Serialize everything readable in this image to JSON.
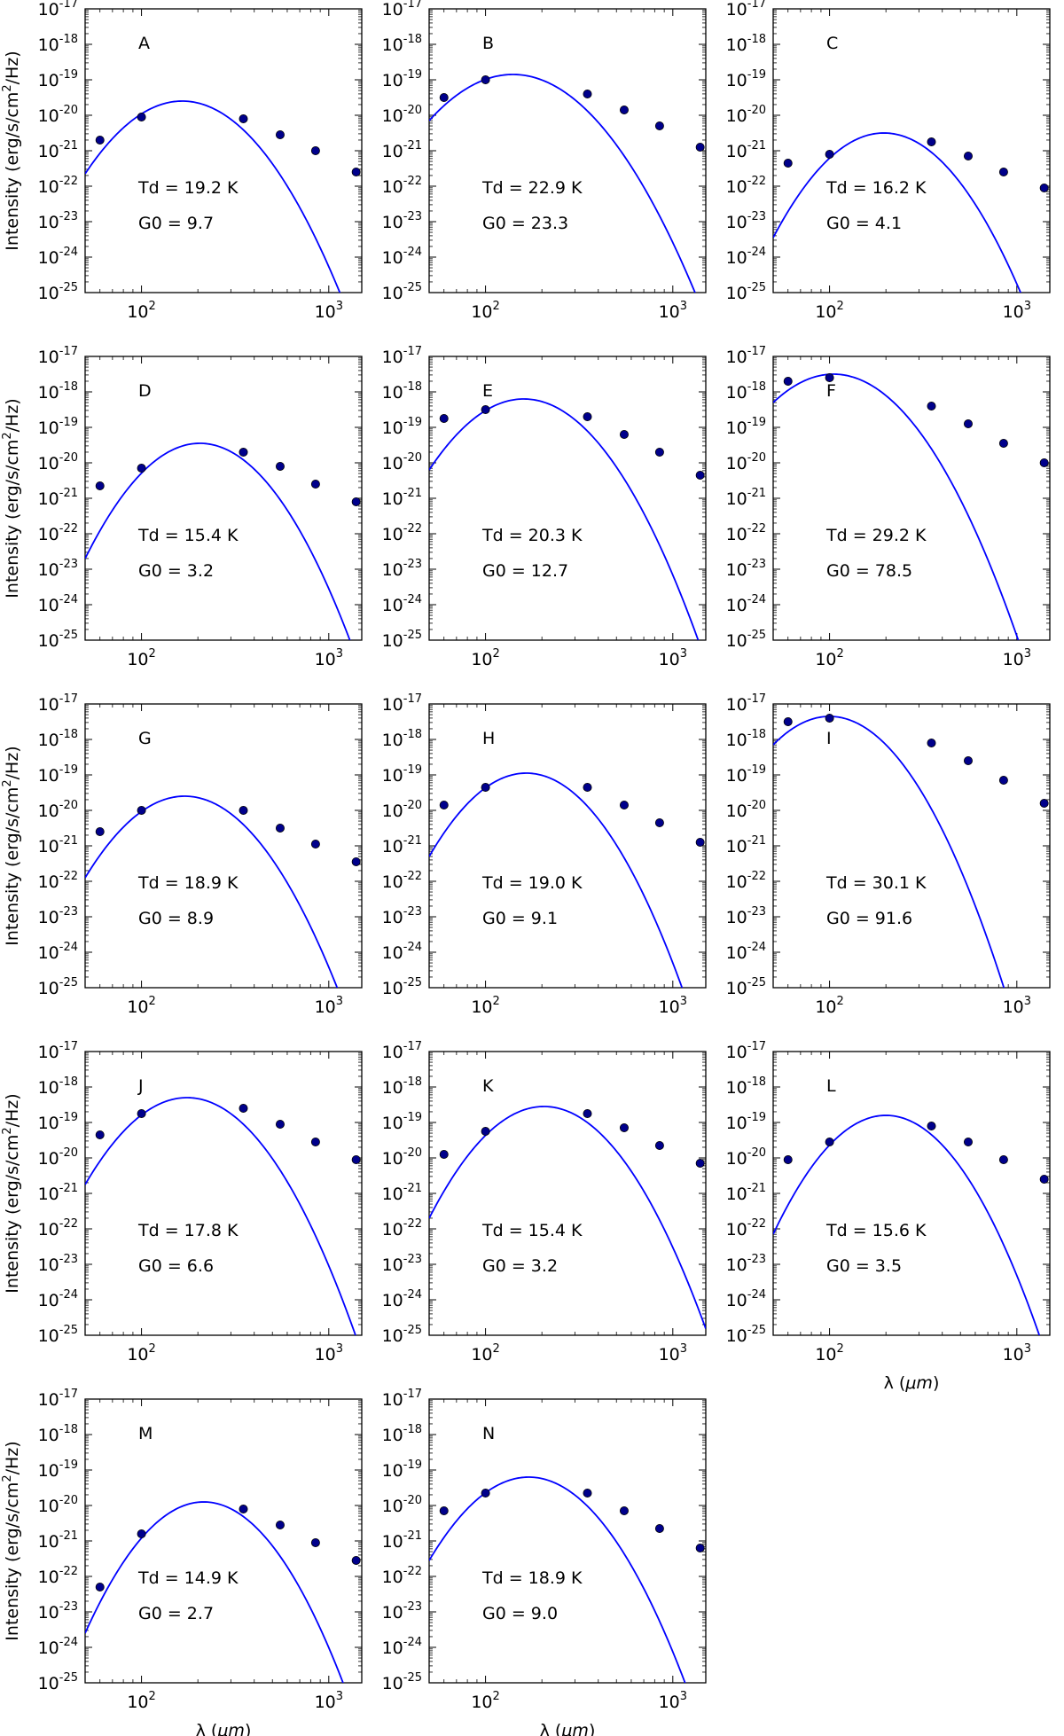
{
  "figure": {
    "common": {
      "type": "scatter+line",
      "xlabel": "λ (μm)",
      "xlabel_prefix": "λ (",
      "xlabel_unit": "μm",
      "xlabel_suffix": ")",
      "ylabel": "Intensity (erg/s/cm²/Hz)",
      "ylabel_prefix": "Intensity (erg/s/cm",
      "ylabel_sup": "2",
      "ylabel_suffix": "/Hz)",
      "xscale": "log",
      "yscale": "log",
      "xlim": [
        50,
        1500
      ],
      "ylim_exp": [
        -25,
        -17
      ],
      "x_ticks": [
        {
          "value": 100,
          "base": "10",
          "exp": "2"
        },
        {
          "value": 1000,
          "base": "10",
          "exp": "3"
        }
      ],
      "y_ticks": [
        {
          "exp_value": -17,
          "base": "10",
          "exp": "-17"
        },
        {
          "exp_value": -18,
          "base": "10",
          "exp": "-18"
        },
        {
          "exp_value": -19,
          "base": "10",
          "exp": "-19"
        },
        {
          "exp_value": -20,
          "base": "10",
          "exp": "-20"
        },
        {
          "exp_value": -21,
          "base": "10",
          "exp": "-21"
        },
        {
          "exp_value": -22,
          "base": "10",
          "exp": "-22"
        },
        {
          "exp_value": -23,
          "base": "10",
          "exp": "-23"
        },
        {
          "exp_value": -24,
          "base": "10",
          "exp": "-24"
        },
        {
          "exp_value": -25,
          "base": "10",
          "exp": "-25"
        }
      ],
      "data_wavelengths_um": [
        60,
        100,
        350,
        550,
        850,
        1400
      ],
      "colors": {
        "curve": "#0000ff",
        "marker": "#00008b",
        "marker_edge": "#000000",
        "axes": "#000000"
      }
    }
  },
  "chart_data": [
    {
      "label": "A",
      "type": "scatter+line",
      "xlabel": "",
      "ylabel": "Intensity (erg/s/cm²/Hz)",
      "td_text": "Td = 19.2 K",
      "g0_text": "G0 = 9.7",
      "points_log10": [
        -20.7,
        -20.05,
        -20.1,
        -20.55,
        -21.0,
        -21.6
      ],
      "curve_peak_um": 165,
      "curve_peak_log10": -19.6,
      "curve_log10_at_50um": -21.65
    },
    {
      "label": "B",
      "type": "scatter+line",
      "xlabel": "",
      "ylabel": "",
      "td_text": "Td = 22.9 K",
      "g0_text": "G0 = 23.3",
      "points_log10": [
        -19.5,
        -19.0,
        -19.4,
        -19.85,
        -20.3,
        -20.9
      ],
      "curve_peak_um": 140,
      "curve_peak_log10": -18.85,
      "curve_log10_at_50um": -20.15
    },
    {
      "label": "C",
      "type": "scatter+line",
      "xlabel": "",
      "ylabel": "",
      "td_text": "Td = 16.2 K",
      "g0_text": "G0 = 4.1",
      "points_log10": [
        -21.35,
        -21.1,
        -20.75,
        -21.15,
        -21.6,
        -22.05
      ],
      "curve_peak_um": 195,
      "curve_peak_log10": -20.5,
      "curve_log10_at_50um": -23.45
    },
    {
      "label": "D",
      "type": "scatter+line",
      "xlabel": "",
      "ylabel": "Intensity (erg/s/cm²/Hz)",
      "td_text": "Td = 15.4 K",
      "g0_text": "G0 = 3.2",
      "points_log10": [
        -20.65,
        -20.15,
        -19.7,
        -20.1,
        -20.6,
        -21.1
      ],
      "curve_peak_um": 205,
      "curve_peak_log10": -19.45,
      "curve_log10_at_50um": -22.7
    },
    {
      "label": "E",
      "type": "scatter+line",
      "xlabel": "",
      "ylabel": "",
      "td_text": "Td = 20.3 K",
      "g0_text": "G0 = 12.7",
      "points_log10": [
        -18.75,
        -18.5,
        -18.7,
        -19.2,
        -19.7,
        -20.35
      ],
      "curve_peak_um": 160,
      "curve_peak_log10": -18.2,
      "curve_log10_at_50um": -20.2
    },
    {
      "label": "F",
      "type": "scatter+line",
      "xlabel": "",
      "ylabel": "",
      "td_text": "Td = 29.2 K",
      "g0_text": "G0 = 78.5",
      "points_log10": [
        -17.7,
        -17.6,
        -18.4,
        -18.9,
        -19.45,
        -20.0
      ],
      "curve_peak_um": 105,
      "curve_peak_log10": -17.5,
      "curve_log10_at_50um": -18.3
    },
    {
      "label": "G",
      "type": "scatter+line",
      "xlabel": "",
      "ylabel": "Intensity (erg/s/cm²/Hz)",
      "td_text": "Td = 18.9 K",
      "g0_text": "G0 = 8.9",
      "points_log10": [
        -20.6,
        -20.0,
        -20.0,
        -20.5,
        -20.95,
        -21.45
      ],
      "curve_peak_um": 170,
      "curve_peak_log10": -19.6,
      "curve_log10_at_50um": -21.9
    },
    {
      "label": "H",
      "type": "scatter+line",
      "xlabel": "",
      "ylabel": "",
      "td_text": "Td = 19.0 K",
      "g0_text": "G0 = 9.1",
      "points_log10": [
        -19.85,
        -19.35,
        -19.35,
        -19.85,
        -20.35,
        -20.9
      ],
      "curve_peak_um": 165,
      "curve_peak_log10": -18.95,
      "curve_log10_at_50um": -21.3
    },
    {
      "label": "I",
      "type": "scatter+line",
      "xlabel": "",
      "ylabel": "",
      "td_text": "Td = 30.1 K",
      "g0_text": "G0 = 91.6",
      "points_log10": [
        -17.5,
        -17.4,
        -18.1,
        -18.6,
        -19.15,
        -19.8
      ],
      "curve_peak_um": 100,
      "curve_peak_log10": -17.35,
      "curve_log10_at_50um": -18.15
    },
    {
      "label": "J",
      "type": "scatter+line",
      "xlabel": "",
      "ylabel": "Intensity (erg/s/cm²/Hz)",
      "td_text": "Td = 17.8 K",
      "g0_text": "G0 = 6.6",
      "points_log10": [
        -19.35,
        -18.75,
        -18.6,
        -19.05,
        -19.55,
        -20.05
      ],
      "curve_peak_um": 175,
      "curve_peak_log10": -18.3,
      "curve_log10_at_50um": -20.75
    },
    {
      "label": "K",
      "type": "scatter+line",
      "xlabel": "",
      "ylabel": "",
      "td_text": "Td = 15.4 K",
      "g0_text": "G0 = 3.2",
      "points_log10": [
        -19.9,
        -19.25,
        -18.75,
        -19.15,
        -19.65,
        -20.15
      ],
      "curve_peak_um": 205,
      "curve_peak_log10": -18.55,
      "curve_log10_at_50um": -21.7
    },
    {
      "label": "L",
      "type": "scatter+line",
      "xlabel": "λ (μm)",
      "ylabel": "",
      "td_text": "Td = 15.6 K",
      "g0_text": "G0 = 3.5",
      "points_log10": [
        -20.05,
        -19.55,
        -19.1,
        -19.55,
        -20.05,
        -20.6
      ],
      "curve_peak_um": 200,
      "curve_peak_log10": -18.8,
      "curve_log10_at_50um": -22.15
    },
    {
      "label": "M",
      "type": "scatter+line",
      "xlabel": "λ (μm)",
      "ylabel": "Intensity (erg/s/cm²/Hz)",
      "td_text": "Td = 14.9 K",
      "g0_text": "G0 = 2.7",
      "points_log10": [
        -22.3,
        -20.8,
        -20.1,
        -20.55,
        -21.05,
        -21.55
      ],
      "curve_peak_um": 215,
      "curve_peak_log10": -19.9,
      "curve_log10_at_50um": -23.6
    },
    {
      "label": "N",
      "type": "scatter+line",
      "xlabel": "λ (μm)",
      "ylabel": "",
      "td_text": "Td = 18.9 K",
      "g0_text": "G0 = 9.0",
      "points_log10": [
        -20.15,
        -19.65,
        -19.65,
        -20.15,
        -20.65,
        -21.2
      ],
      "curve_peak_um": 170,
      "curve_peak_log10": -19.2,
      "curve_log10_at_50um": -21.55
    }
  ]
}
